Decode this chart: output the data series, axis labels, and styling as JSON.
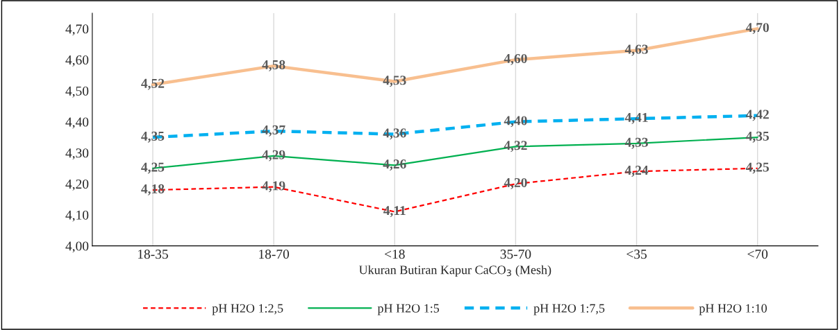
{
  "chart_data": {
    "type": "line",
    "xlabel": "Ukuran Butiran Kapur CaCO$_{3}$ (Mesh)",
    "categories": [
      "18-35",
      "18-70",
      "<18",
      "35-70",
      "<35",
      "<70"
    ],
    "series": [
      {
        "name": "pH H2O 1:2,5",
        "color": "#ff0000",
        "line_style": "dashed",
        "values": [
          4.18,
          4.19,
          4.11,
          4.2,
          4.24,
          4.25
        ],
        "value_labels": [
          "4,18",
          "4,19",
          "4,11",
          "4,20",
          "4,24",
          "4,25"
        ]
      },
      {
        "name": "pH H2O 1:5",
        "color": "#00b050",
        "line_style": "solid",
        "values": [
          4.25,
          4.29,
          4.26,
          4.32,
          4.33,
          4.35
        ],
        "value_labels": [
          "4,25",
          "4,29",
          "4,26",
          "4,32",
          "4,33",
          "4,35"
        ]
      },
      {
        "name": "pH H2O 1:7,5",
        "color": "#00b0f0",
        "line_style": "dashed",
        "values": [
          4.35,
          4.37,
          4.36,
          4.4,
          4.41,
          4.42
        ],
        "value_labels": [
          "4,35",
          "4,37",
          "4,36",
          "4,40",
          "4,41",
          "4,42"
        ]
      },
      {
        "name": "pH H2O 1:10",
        "color": "#f8bf8f",
        "line_style": "solid",
        "values": [
          4.52,
          4.58,
          4.53,
          4.6,
          4.63,
          4.7
        ],
        "value_labels": [
          "4,52",
          "4,58",
          "4,53",
          "4,60",
          "4,63",
          "4,70"
        ]
      }
    ],
    "ylim": [
      4.0,
      4.75
    ],
    "yticks": [
      {
        "value": 4.0,
        "label": "4,00"
      },
      {
        "value": 4.1,
        "label": "4,10"
      },
      {
        "value": 4.2,
        "label": "4,20"
      },
      {
        "value": 4.3,
        "label": "4,30"
      },
      {
        "value": 4.4,
        "label": "4,40"
      },
      {
        "value": 4.5,
        "label": "4,50"
      },
      {
        "value": 4.6,
        "label": "4,60"
      },
      {
        "value": 4.7,
        "label": "4,70"
      }
    ],
    "grid": "x",
    "legend": "bottom",
    "marker": "none"
  }
}
